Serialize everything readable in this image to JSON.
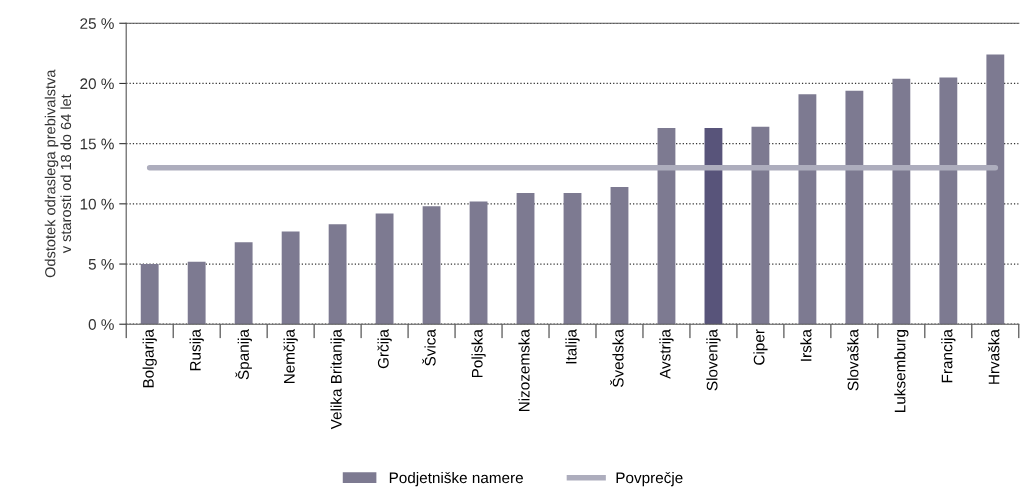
{
  "chart_data": {
    "type": "bar",
    "ylabel": "Odstotek odraslega prebivalstva\nv starosti od 18 do 64 let",
    "categories": [
      "Bolgarija",
      "Rusija",
      "Španija",
      "Nemčija",
      "Velika Britanija",
      "Grčija",
      "Švica",
      "Poljska",
      "Nizozemska",
      "Italija",
      "Švedska",
      "Avstrija",
      "Slovenija",
      "Ciper",
      "Irska",
      "Slovaška",
      "Luksemburg",
      "Francija",
      "Hrvaška"
    ],
    "series": [
      {
        "name": "Podjetniške namere",
        "color": "#7d7a91",
        "colors": [
          "#7d7a91",
          "#7d7a91",
          "#7d7a91",
          "#7d7a91",
          "#7d7a91",
          "#7d7a91",
          "#7d7a91",
          "#7d7a91",
          "#7d7a91",
          "#7d7a91",
          "#7d7a91",
          "#7d7a91",
          "#58547a",
          "#7d7a91",
          "#7d7a91",
          "#7d7a91",
          "#7d7a91",
          "#7d7a91",
          "#7d7a91"
        ],
        "values": [
          5.0,
          5.2,
          6.8,
          7.7,
          8.3,
          9.2,
          9.8,
          10.2,
          10.9,
          10.9,
          11.4,
          16.3,
          16.3,
          16.4,
          19.1,
          19.4,
          20.4,
          20.5,
          22.4
        ]
      },
      {
        "name": "Povprečje",
        "type": "line",
        "color": "#adadbd",
        "values": [
          13.0,
          13.0,
          13.0,
          13.0,
          13.0,
          13.0,
          13.0,
          13.0,
          13.0,
          13.0,
          13.0,
          13.0,
          13.0,
          13.0,
          13.0,
          13.0,
          13.0,
          13.0,
          13.0
        ]
      }
    ],
    "ylim": [
      0,
      25
    ],
    "yticks": [
      {
        "value": 0,
        "label": "0 %"
      },
      {
        "value": 5,
        "label": "5 %"
      },
      {
        "value": 10,
        "label": "10 %"
      },
      {
        "value": 15,
        "label": "15 %"
      },
      {
        "value": 20,
        "label": "20 %"
      },
      {
        "value": 25,
        "label": "25 %"
      }
    ],
    "grid": "y",
    "line_style": "solid",
    "marker": "none",
    "legend": "bottom"
  }
}
